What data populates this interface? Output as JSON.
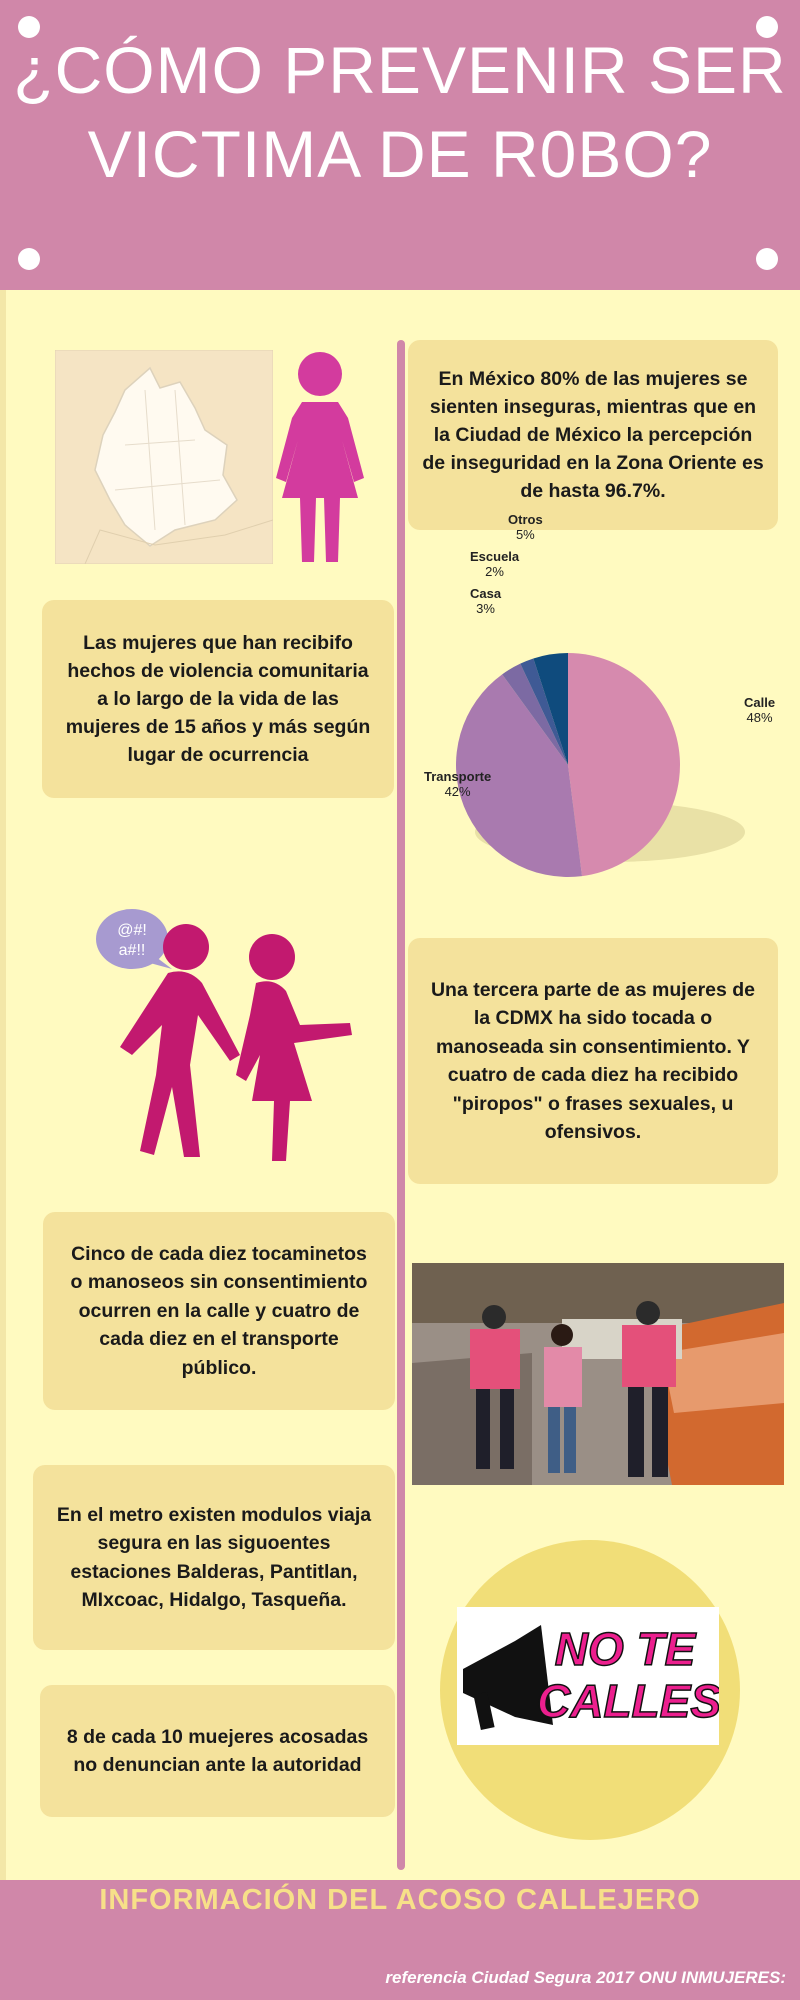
{
  "header": {
    "title_line1": "¿CÓMO PREVENIR SER",
    "title_line2": "VICTIMA DE R0BO?"
  },
  "cards": {
    "stat_mexico": "En México 80% de las mujeres se sienten inseguras, mientras que en la Ciudad de México la percepción de inseguridad  en la Zona Oriente es de hasta 96.7%.",
    "violence_place": "Las mujeres que han recibifo hechos de violencia comunitaria a lo largo de la vida de las mujeres de 15 años y más según lugar de ocurrencia",
    "third_touched": "Una tercera parte de as mujeres de la CDMX ha sido  tocada o manoseada sin consentimiento. Y cuatro de cada diez ha recibido \"piropos\" o frases sexuales, u ofensivos.",
    "five_of_ten": "Cinco de cada diez tocaminetos o manoseos sin consentimiento ocurren en la calle y cuatro de cada diez en el transporte público.",
    "metro_modules": "En el metro existen modulos viaja segura  en las siguoentes estaciones Balderas, Pantitlan, MIxcoac, Hidalgo, Tasqueña.",
    "eight_of_ten": "8 de cada 10 muejeres acosadas no denuncian ante la autoridad"
  },
  "speech_bubble": {
    "line1": "@#!",
    "line2": "a#!!"
  },
  "logo": {
    "line1": "NO TE",
    "line2": "CALLES"
  },
  "chart_data": {
    "type": "pie",
    "categories": [
      "Calle",
      "Transporte",
      "Casa",
      "Escuela",
      "Otros"
    ],
    "values": [
      48,
      42,
      3,
      2,
      5
    ],
    "labels": [
      "48%",
      "42%",
      "3%",
      "2%",
      "5%"
    ],
    "colors": [
      "#d68aae",
      "#a97aaf",
      "#7c6aa3",
      "#3f5a95",
      "#0f4b7d"
    ]
  },
  "footer": {
    "title": "INFORMACIÓN DEL ACOSO CALLEJERO",
    "reference": "referencia Ciudad Segura 2017 ONU INMUJERES:"
  }
}
